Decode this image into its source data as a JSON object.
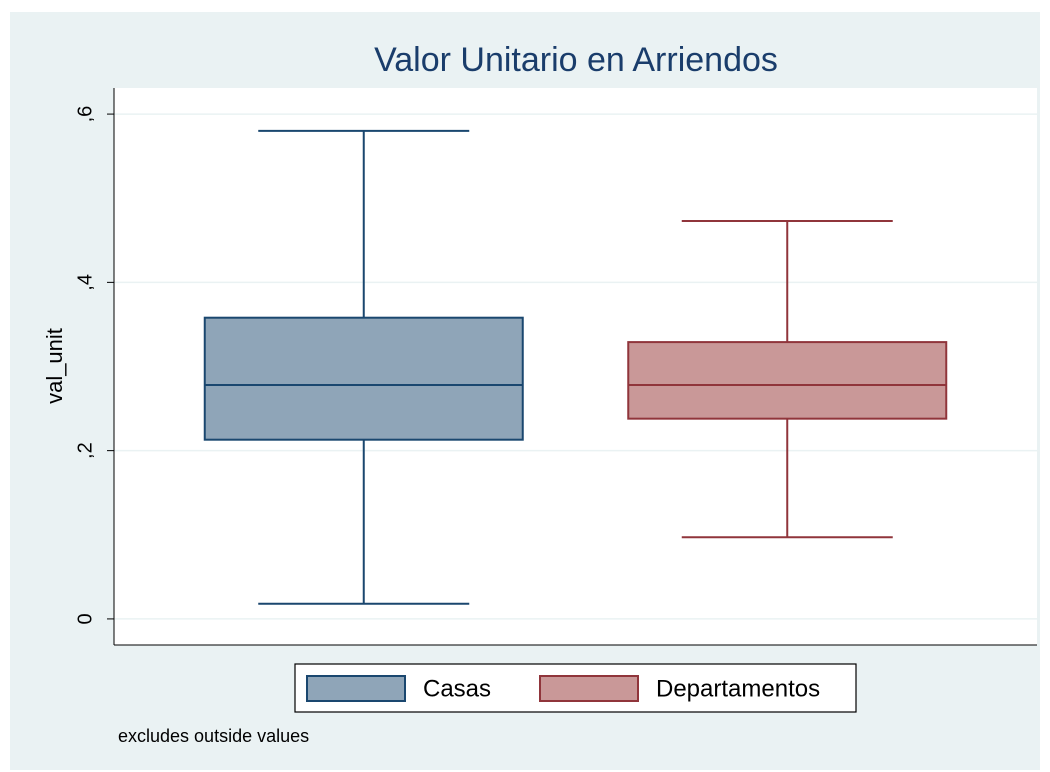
{
  "chart_data": {
    "type": "box",
    "title": "Valor Unitario en Arriendos",
    "ylabel": "val_unit",
    "note": "excludes outside values",
    "ylim": [
      -0.031,
      0.631
    ],
    "yticks": [
      0,
      {
        "value": 0.2,
        "label": ",2"
      },
      {
        "value": 0.4,
        "label": ",4"
      },
      {
        "value": 0.6,
        "label": ",6"
      }
    ],
    "grid": true,
    "legend": "bottom",
    "series": [
      {
        "name": "Casas",
        "color": "#8fa5b8",
        "edge": "#1a476f",
        "min": 0.018,
        "q1": 0.213,
        "median": 0.278,
        "q3": 0.358,
        "max": 0.58
      },
      {
        "name": "Departamentos",
        "color": "#c99898",
        "edge": "#90353b",
        "min": 0.097,
        "q1": 0.238,
        "median": 0.278,
        "q3": 0.329,
        "max": 0.473
      }
    ]
  }
}
